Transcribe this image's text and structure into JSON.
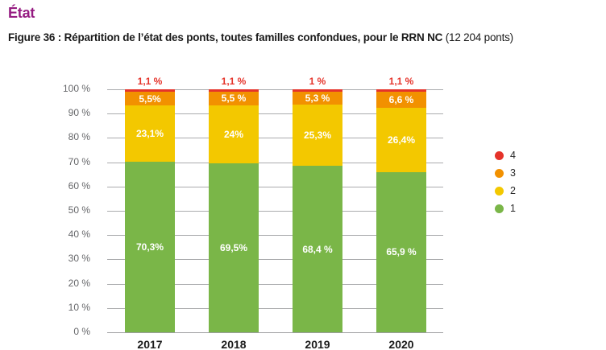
{
  "page": {
    "title": "État",
    "caption_bold": "Figure 36 : Répartition de l’état des ponts, toutes familles confondues, pour le RRN NC",
    "caption_suffix": " (12 204 ponts)"
  },
  "colors": {
    "title": "#951b81",
    "green": "#7ab648",
    "yellow": "#f3c800",
    "orange": "#f29100",
    "red": "#e5332a",
    "grid": "#aaabad",
    "axis_text": "#66676a"
  },
  "chart_data": {
    "type": "bar",
    "stacked": true,
    "title": "Répartition de l’état des ponts, toutes familles confondues, pour le RRN NC (12 204 ponts)",
    "categories": [
      "2017",
      "2018",
      "2019",
      "2020"
    ],
    "series": [
      {
        "name": "1",
        "color_key": "green",
        "values": [
          70.3,
          69.5,
          68.4,
          65.9
        ],
        "labels": [
          "70,3%",
          "69,5%",
          "68,4 %",
          "65,9 %"
        ],
        "label_outside": false
      },
      {
        "name": "2",
        "color_key": "yellow",
        "values": [
          23.1,
          24.0,
          25.3,
          26.4
        ],
        "labels": [
          "23,1%",
          "24%",
          "25,3%",
          "26,4%"
        ],
        "label_outside": false
      },
      {
        "name": "3",
        "color_key": "orange",
        "values": [
          5.5,
          5.5,
          5.3,
          6.6
        ],
        "labels": [
          "5,5%",
          "5,5 %",
          "5,3 %",
          "6,6 %"
        ],
        "label_outside": false
      },
      {
        "name": "4",
        "color_key": "red",
        "values": [
          1.1,
          1.1,
          1.0,
          1.1
        ],
        "labels": [
          "1,1 %",
          "1,1 %",
          "1 %",
          "1,1 %"
        ],
        "label_outside": true
      }
    ],
    "y_ticks": [
      "100 %",
      "90 %",
      "80 %",
      "70 %",
      "60 %",
      "50 %",
      "40 %",
      "30 %",
      "20 %",
      "10 %",
      "0 %"
    ],
    "ylim": [
      0,
      100
    ],
    "grid": true,
    "legend_position": "right",
    "legend": [
      {
        "label": "4",
        "color_key": "red"
      },
      {
        "label": "3",
        "color_key": "orange"
      },
      {
        "label": "2",
        "color_key": "yellow"
      },
      {
        "label": "1",
        "color_key": "green"
      }
    ]
  }
}
